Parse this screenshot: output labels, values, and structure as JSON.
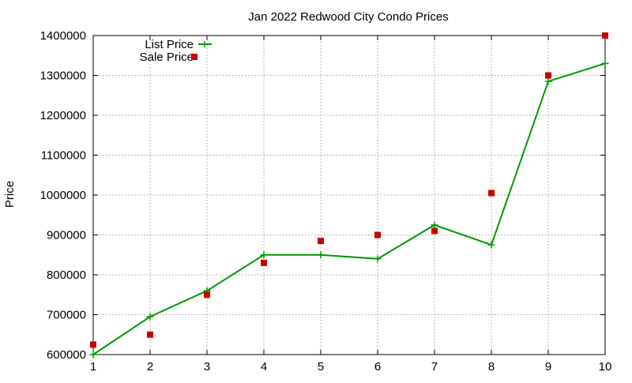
{
  "chart_data": {
    "type": "line",
    "title": "Jan 2022 Redwood City Condo Prices",
    "xlabel": "",
    "ylabel": "Price",
    "x": [
      1,
      2,
      3,
      4,
      5,
      6,
      7,
      8,
      9,
      10
    ],
    "xlim": [
      1,
      10
    ],
    "ylim": [
      600000,
      1400000
    ],
    "yticks": [
      600000,
      700000,
      800000,
      900000,
      1000000,
      1100000,
      1200000,
      1300000,
      1400000
    ],
    "grid": true,
    "legend_position": "top-left",
    "series": [
      {
        "name": "List Price",
        "style": "line-plus",
        "color": "#009900",
        "values": [
          600000,
          695000,
          760000,
          850000,
          850000,
          840000,
          925000,
          875000,
          1285000,
          1330000
        ]
      },
      {
        "name": "Sale Price",
        "style": "square",
        "color": "#cc0000",
        "values": [
          625000,
          650000,
          750000,
          830000,
          885000,
          900000,
          910000,
          1005000,
          1300000,
          1400000
        ]
      }
    ]
  }
}
